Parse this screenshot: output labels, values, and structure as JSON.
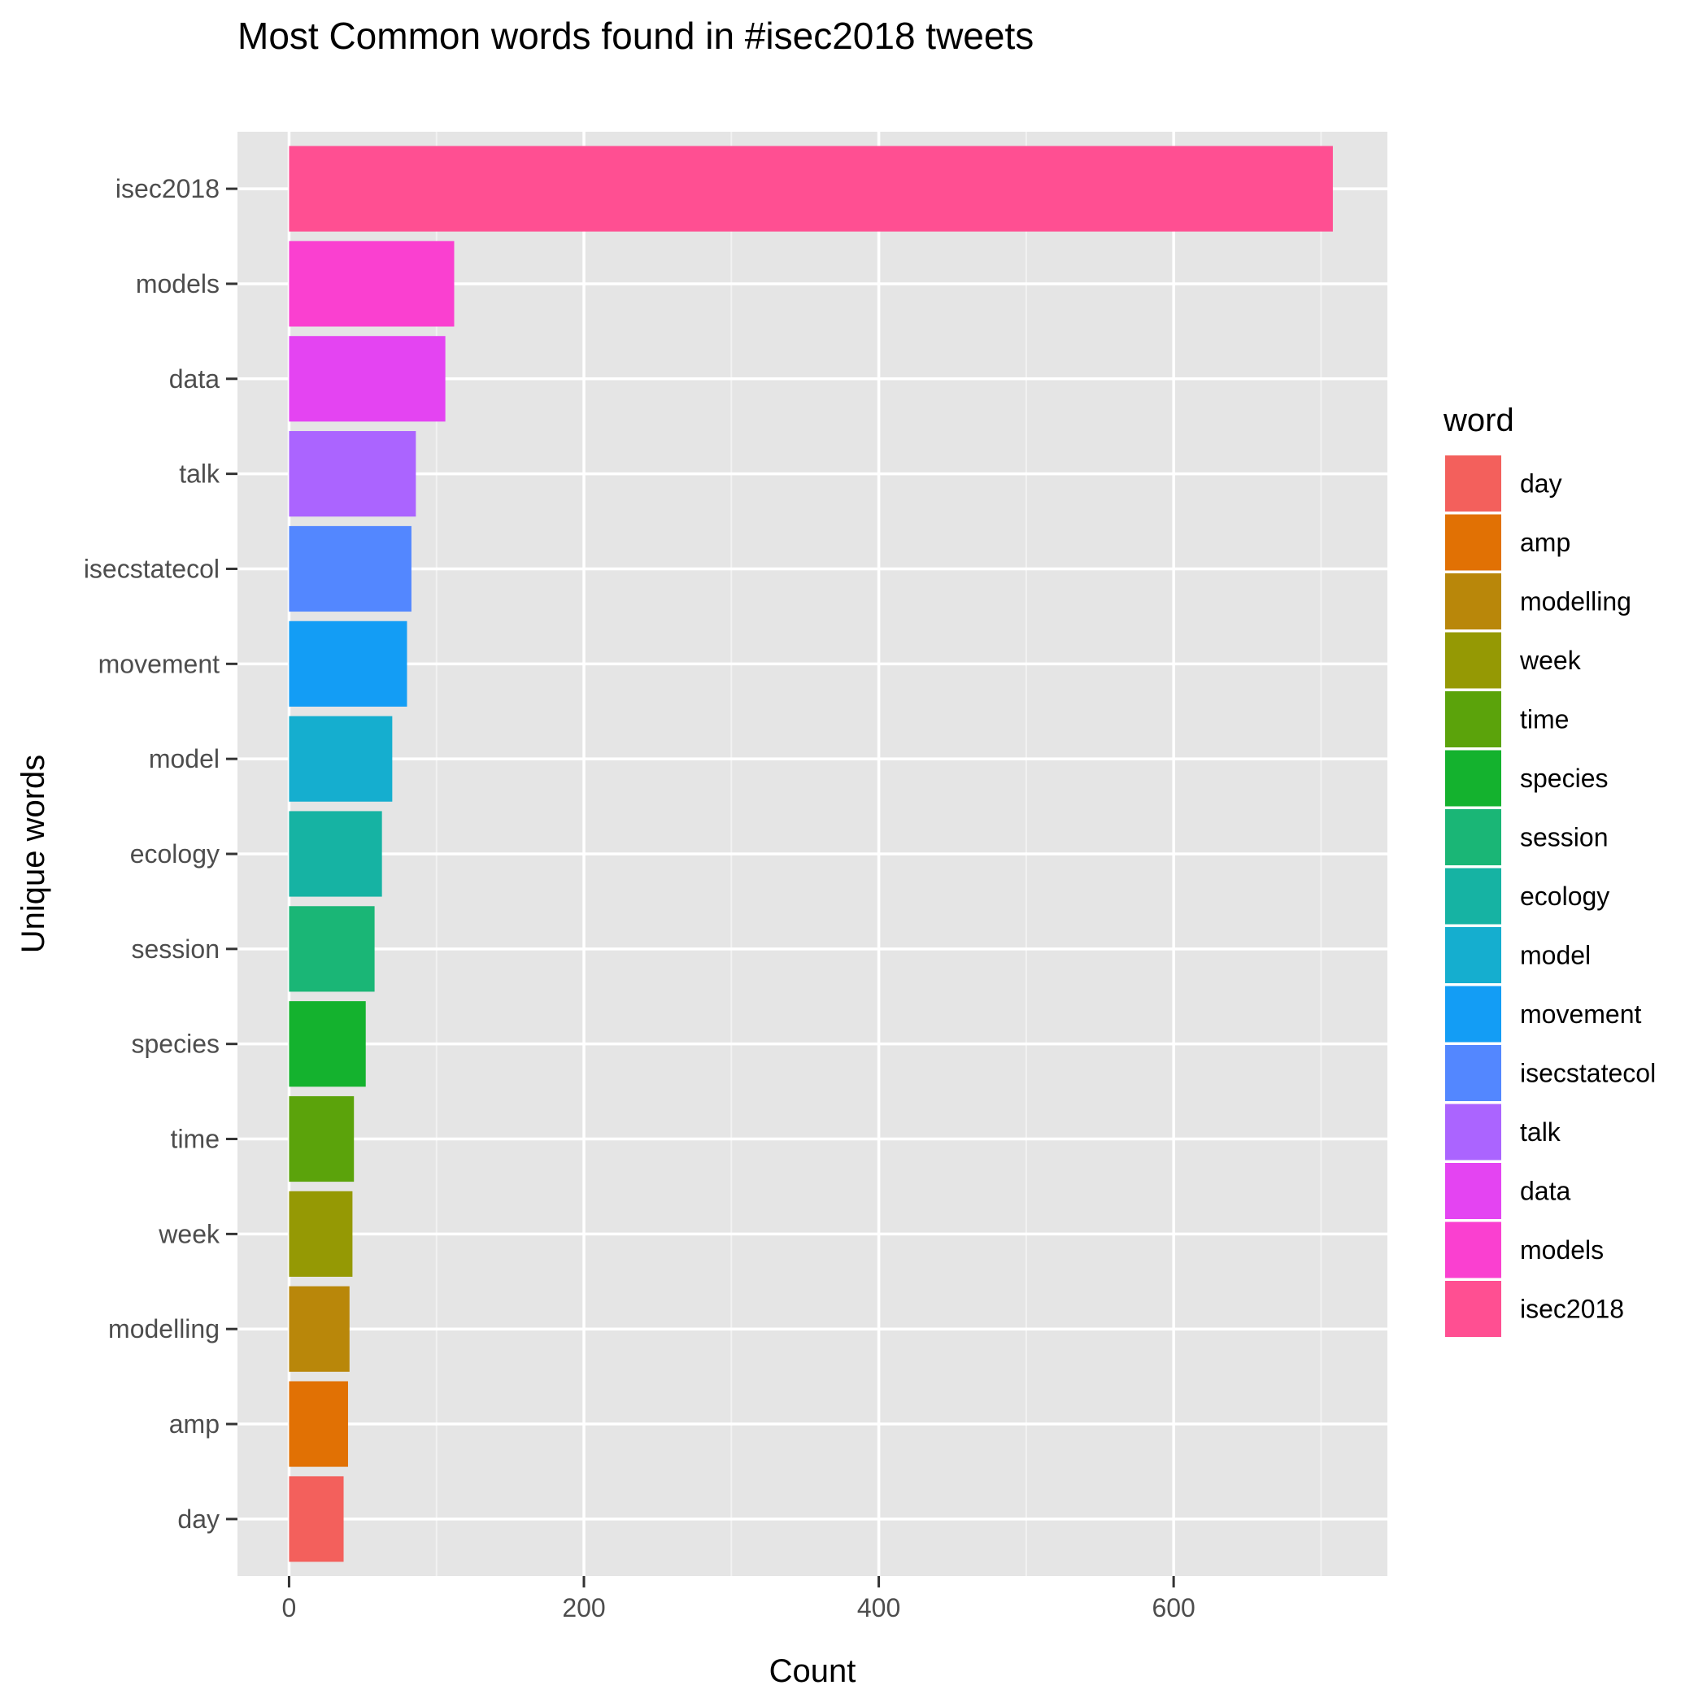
{
  "chart_data": {
    "type": "bar",
    "orientation": "horizontal",
    "title": "Most Common words found in #isec2018 tweets",
    "xlabel": "Count",
    "ylabel": "Unique words",
    "xlim": [
      -35,
      745
    ],
    "x_ticks": [
      0,
      200,
      400,
      600
    ],
    "categories": [
      "isec2018",
      "models",
      "data",
      "talk",
      "isecstatecol",
      "movement",
      "model",
      "ecology",
      "session",
      "species",
      "time",
      "week",
      "modelling",
      "amp",
      "day"
    ],
    "values": [
      708,
      112,
      106,
      86,
      83,
      80,
      70,
      63,
      58,
      52,
      44,
      43,
      41,
      40,
      37
    ],
    "colors": [
      "#FF4F92",
      "#FA40D0",
      "#E444F2",
      "#AB64FF",
      "#5387FF",
      "#139DF5",
      "#15AECF",
      "#16B3A3",
      "#1AB676",
      "#14B22E",
      "#5BA30B",
      "#959904",
      "#B9870A",
      "#E17104",
      "#F3605C"
    ],
    "grid": true,
    "legend": {
      "title": "word",
      "position": "right",
      "entries": [
        "day",
        "amp",
        "modelling",
        "week",
        "time",
        "species",
        "session",
        "ecology",
        "model",
        "movement",
        "isecstatecol",
        "talk",
        "data",
        "models",
        "isec2018"
      ],
      "colors": [
        "#F3605C",
        "#E17104",
        "#B9870A",
        "#959904",
        "#5BA30B",
        "#14B22E",
        "#1AB676",
        "#16B3A3",
        "#15AECF",
        "#139DF5",
        "#5387FF",
        "#AB64FF",
        "#E444F2",
        "#FA40D0",
        "#FF4F92"
      ]
    }
  }
}
